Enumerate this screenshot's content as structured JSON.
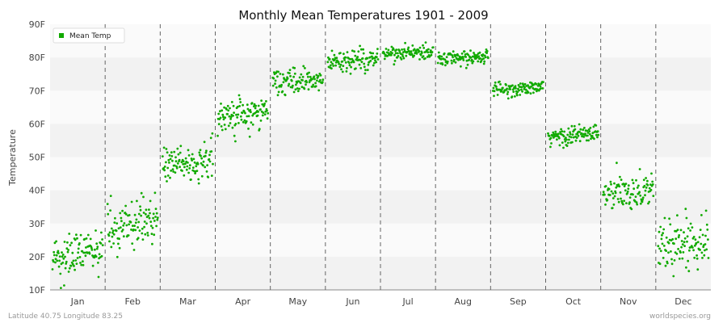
{
  "chart_data": {
    "type": "scatter",
    "title": "Monthly Mean Temperatures 1901 - 2009",
    "xlabel": "",
    "ylabel": "Temperature",
    "categories": [
      "Jan",
      "Feb",
      "Mar",
      "Apr",
      "May",
      "Jun",
      "Jul",
      "Aug",
      "Sep",
      "Oct",
      "Nov",
      "Dec"
    ],
    "yticks": [
      "10F",
      "20F",
      "30F",
      "40F",
      "50F",
      "60F",
      "70F",
      "80F",
      "90F"
    ],
    "ylim": [
      10,
      90
    ],
    "grid": "horizontal bands, dashed month separators",
    "legend_position": "top-left",
    "series": [
      {
        "name": "Mean Temp",
        "color": "#11aa00",
        "points_per_month": 109,
        "monthly_mean": [
          20.5,
          30.0,
          48.0,
          62.5,
          73.0,
          79.0,
          81.5,
          80.0,
          70.5,
          56.5,
          39.5,
          24.5
        ],
        "monthly_spread": [
          3.0,
          4.0,
          3.0,
          2.5,
          1.8,
          1.6,
          1.1,
          1.1,
          1.0,
          1.5,
          2.8,
          3.8
        ]
      }
    ]
  },
  "footer": {
    "left": "Latitude 40.75 Longitude 83.25",
    "right": "worldspecies.org"
  }
}
